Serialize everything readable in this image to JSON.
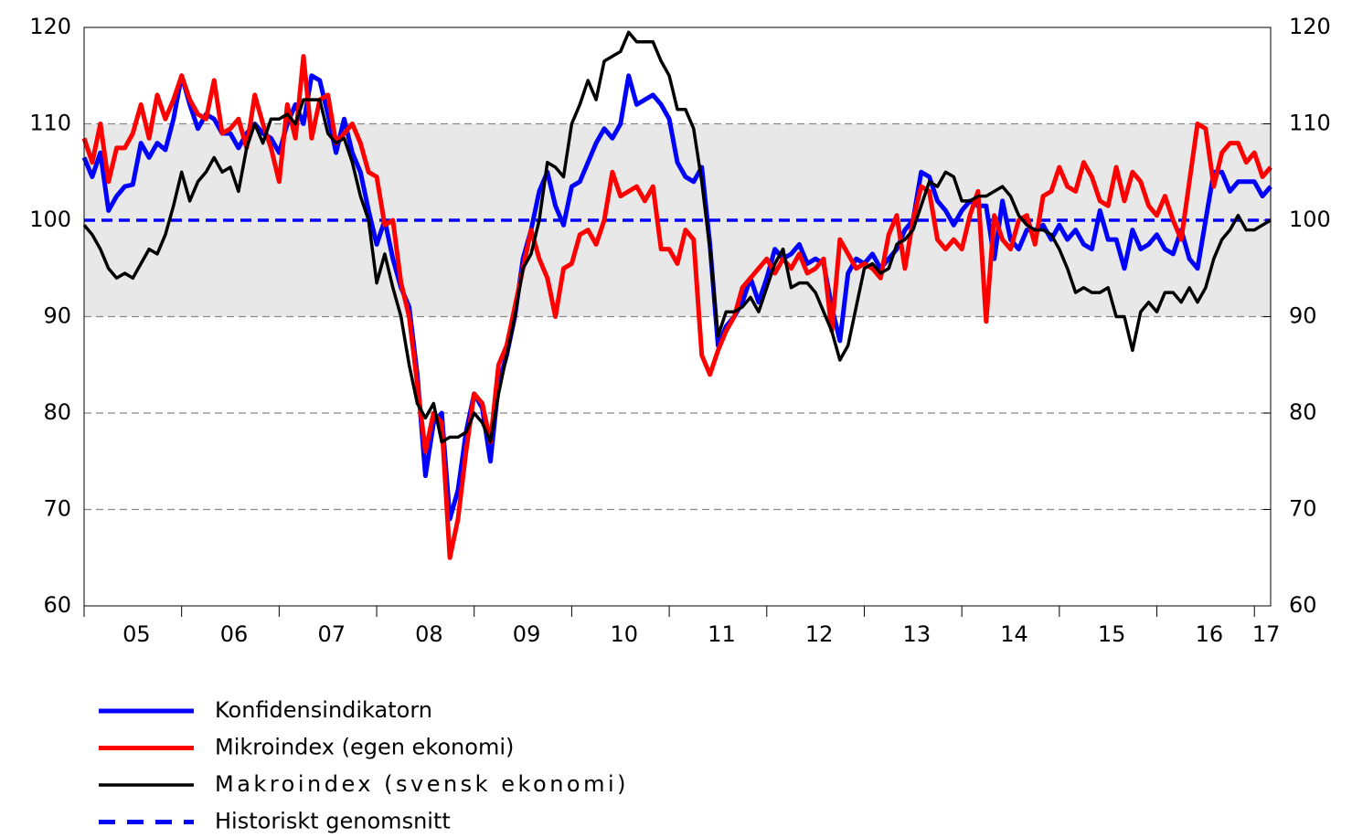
{
  "chart_data": {
    "type": "line",
    "categories": [
      "05",
      null,
      null,
      null,
      null,
      null,
      null,
      null,
      null,
      null,
      null,
      null,
      "06",
      null,
      null,
      null,
      null,
      null,
      null,
      null,
      null,
      null,
      null,
      null,
      "07",
      null,
      null,
      null,
      null,
      null,
      null,
      null,
      null,
      null,
      null,
      null,
      "08",
      null,
      null,
      null,
      null,
      null,
      null,
      null,
      null,
      null,
      null,
      null,
      "09",
      null,
      null,
      null,
      null,
      null,
      null,
      null,
      null,
      null,
      null,
      null,
      "10",
      null,
      null,
      null,
      null,
      null,
      null,
      null,
      null,
      null,
      null,
      null,
      "11",
      null,
      null,
      null,
      null,
      null,
      null,
      null,
      null,
      null,
      null,
      null,
      "12",
      null,
      null,
      null,
      null,
      null,
      null,
      null,
      null,
      null,
      null,
      null,
      "13",
      null,
      null,
      null,
      null,
      null,
      null,
      null,
      null,
      null,
      null,
      null,
      "14",
      null,
      null,
      null,
      null,
      null,
      null,
      null,
      null,
      null,
      null,
      null,
      "15",
      null,
      null,
      null,
      null,
      null,
      null,
      null,
      null,
      null,
      null,
      null,
      "16",
      null,
      null,
      null,
      null,
      null,
      null,
      null,
      null,
      null,
      null,
      null,
      "17",
      null,
      null
    ],
    "ylim": [
      60,
      120
    ],
    "yticks": [
      60,
      70,
      80,
      90,
      100,
      110,
      120
    ],
    "y2lim": [
      60,
      120
    ],
    "y2ticks": [
      60,
      70,
      80,
      90,
      100,
      110,
      120
    ],
    "grid": true,
    "shaded_range": [
      90,
      110
    ],
    "series": [
      {
        "name": "Konfidensindikatorn",
        "color": "#0000ff",
        "width": 5,
        "values": [
          106.5,
          104.5,
          107,
          101,
          102.5,
          103.5,
          103.7,
          108,
          106.5,
          108,
          107.3,
          110.5,
          115,
          112,
          109.5,
          111,
          110.5,
          109,
          109,
          107.5,
          109,
          110,
          109,
          108.5,
          107,
          110,
          112,
          110,
          115,
          114.5,
          111,
          107,
          110.5,
          107,
          105,
          101,
          97.5,
          100,
          96,
          93,
          91,
          84,
          73.5,
          79,
          80,
          69,
          72,
          78,
          82,
          80.5,
          75,
          83,
          86,
          90,
          96,
          99,
          103,
          105,
          101.5,
          99.5,
          103.5,
          104,
          106,
          108,
          109.5,
          108.5,
          110,
          115,
          112,
          112.5,
          113,
          112,
          110.5,
          106,
          104.5,
          104,
          105.5,
          97.5,
          87,
          89,
          90,
          91.5,
          94,
          91.5,
          94,
          97,
          96,
          96.5,
          97.5,
          95.5,
          96,
          95.5,
          91,
          87.5,
          94.5,
          96,
          95.5,
          96.5,
          95,
          96,
          97,
          99,
          100,
          105,
          104.5,
          102,
          101,
          99.5,
          101,
          102,
          101.5,
          101.5,
          96,
          102,
          98,
          97,
          99,
          99,
          99.5,
          98,
          99.5,
          98,
          99,
          97.5,
          97,
          101,
          98,
          98,
          95,
          99,
          97,
          97.5,
          98.5,
          97,
          96.5,
          99,
          96,
          95,
          100,
          105,
          105,
          103,
          104,
          104,
          104,
          102.5,
          103.5
        ]
      },
      {
        "name": "Mikroindex (egen ekonomi)",
        "color": "#ff0000",
        "width": 5,
        "values": [
          108.5,
          106,
          110,
          104,
          107.5,
          107.5,
          109,
          112,
          108.5,
          113,
          110.5,
          112.5,
          115,
          112.5,
          111,
          110.5,
          114.5,
          109,
          109.5,
          110.5,
          107.5,
          113,
          110,
          107.5,
          104,
          112,
          108.5,
          117,
          108.5,
          112.5,
          113,
          108,
          109,
          110,
          108,
          105,
          104.5,
          99.5,
          100,
          93.5,
          90,
          83,
          76,
          80,
          79,
          65,
          69,
          76,
          82,
          81,
          77,
          85,
          87,
          91,
          95,
          99,
          96,
          94,
          90,
          95,
          95.5,
          98.5,
          99,
          97.5,
          100,
          105,
          102.5,
          103,
          103.5,
          102,
          103.5,
          97,
          97,
          95.5,
          99,
          98,
          86,
          84,
          86.5,
          88.5,
          90,
          93,
          94,
          95,
          96,
          94.5,
          96,
          95,
          96.5,
          94.5,
          95,
          96,
          88.5,
          98,
          96.5,
          95,
          95.5,
          95,
          94,
          98.5,
          100.5,
          95,
          100,
          103.5,
          103,
          98,
          97,
          98,
          97,
          100.5,
          103,
          89.5,
          100.5,
          98,
          97,
          100,
          100.5,
          97.5,
          102.5,
          103,
          105.5,
          103.5,
          103,
          106,
          104.5,
          102,
          101.5,
          105.5,
          102,
          105,
          104,
          101.5,
          100.5,
          102.5,
          100,
          98,
          104,
          110,
          109.5,
          103.5,
          107,
          108,
          108,
          106,
          107,
          104.5,
          105.5
        ]
      },
      {
        "name": "Makroindex (svensk ekonomi)",
        "color": "#000000",
        "width": 3.5,
        "values": [
          99.5,
          98.5,
          97,
          95,
          94,
          94.5,
          94,
          95.5,
          97,
          96.5,
          98.5,
          101.5,
          105,
          102,
          104,
          105,
          106.5,
          105,
          105.5,
          103,
          107.5,
          110,
          108,
          110.5,
          110.5,
          111,
          110,
          112.5,
          112.5,
          112.5,
          109,
          108,
          108.5,
          106,
          102.5,
          100,
          93.5,
          96.5,
          93,
          90,
          85,
          81,
          79.5,
          81,
          77,
          77.5,
          77.5,
          78,
          80,
          79,
          77,
          82,
          86,
          90,
          95,
          96.5,
          100,
          106,
          105.5,
          104.5,
          110,
          112,
          114.5,
          112.5,
          116.5,
          117,
          117.5,
          119.5,
          118.5,
          118.5,
          118.5,
          116.5,
          115,
          111.5,
          111.5,
          109.5,
          104,
          97,
          88,
          90.5,
          90.5,
          91,
          92,
          90.5,
          93,
          95.5,
          97,
          93,
          93.5,
          93.5,
          92.5,
          90.5,
          88.5,
          85.5,
          87,
          91,
          95,
          95.5,
          94.5,
          95,
          97.5,
          98,
          99,
          101.5,
          104,
          103.5,
          105,
          104.5,
          102,
          102,
          102.5,
          102.5,
          103,
          103.5,
          102.5,
          100.5,
          99.5,
          99,
          99,
          98.5,
          97,
          95,
          92.5,
          93,
          92.5,
          92.5,
          93,
          90,
          90,
          86.5,
          90.5,
          91.5,
          90.5,
          92.5,
          92.5,
          91.5,
          93,
          91.5,
          93,
          96,
          98,
          99,
          100.5,
          99,
          99,
          99.5,
          100
        ]
      }
    ],
    "reference_line": {
      "name": "Historiskt genomsnitt",
      "color": "#0000ff",
      "value": 100,
      "dash": true
    }
  }
}
